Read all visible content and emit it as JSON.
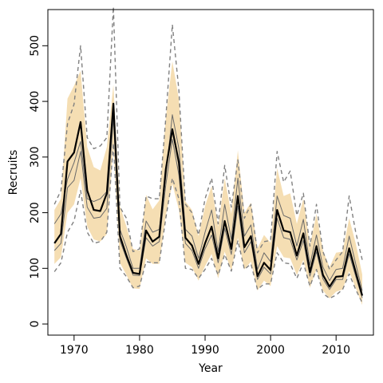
{
  "chart_data": {
    "type": "line",
    "xlabel": "Year",
    "ylabel": "Recruits",
    "xlim": [
      1966,
      2015.7
    ],
    "ylim": [
      -20,
      565
    ],
    "x_ticks": [
      1970,
      1980,
      1990,
      2000,
      2010
    ],
    "y_ticks": [
      0,
      100,
      200,
      300,
      400,
      500
    ],
    "grid": false,
    "legend": "none",
    "colors": {
      "band": "#f5deb3",
      "median": "#000000",
      "inner": "#696969",
      "dashed": "#808080"
    },
    "x": [
      1967,
      1968,
      1969,
      1970,
      1971,
      1972,
      1973,
      1974,
      1975,
      1976,
      1977,
      1978,
      1979,
      1980,
      1981,
      1982,
      1983,
      1984,
      1985,
      1986,
      1987,
      1988,
      1989,
      1990,
      1991,
      1992,
      1993,
      1994,
      1995,
      1996,
      1997,
      1998,
      1999,
      2000,
      2001,
      2002,
      2003,
      2004,
      2005,
      2006,
      2007,
      2008,
      2009,
      2010,
      2011,
      2012,
      2013,
      2014
    ],
    "series": [
      {
        "role": "median",
        "values": [
          145,
          162,
          292,
          308,
          363,
          240,
          205,
          203,
          235,
          396,
          158,
          123,
          92,
          90,
          168,
          148,
          157,
          278,
          350,
          290,
          155,
          141,
          108,
          145,
          175,
          118,
          185,
          135,
          230,
          138,
          158,
          86,
          110,
          97,
          205,
          168,
          165,
          123,
          163,
          93,
          140,
          88,
          67,
          85,
          86,
          136,
          93,
          51
        ]
      },
      {
        "role": "upper-band",
        "values": [
          205,
          225,
          405,
          428,
          455,
          318,
          282,
          276,
          318,
          430,
          212,
          175,
          135,
          132,
          232,
          206,
          222,
          370,
          472,
          404,
          220,
          205,
          158,
          212,
          248,
          175,
          262,
          198,
          312,
          200,
          218,
          136,
          160,
          146,
          280,
          230,
          235,
          180,
          225,
          140,
          198,
          132,
          102,
          128,
          130,
          190,
          145,
          89
        ]
      },
      {
        "role": "lower-band",
        "values": [
          108,
          120,
          200,
          215,
          262,
          175,
          152,
          148,
          162,
          318,
          110,
          88,
          64,
          63,
          118,
          108,
          108,
          195,
          252,
          205,
          110,
          102,
          78,
          104,
          126,
          82,
          130,
          95,
          155,
          98,
          112,
          60,
          78,
          68,
          140,
          120,
          118,
          88,
          115,
          65,
          98,
          60,
          46,
          58,
          62,
          95,
          65,
          34
        ]
      },
      {
        "role": "upper-inner",
        "values": [
          180,
          198,
          260,
          290,
          328,
          225,
          220,
          225,
          238,
          390,
          170,
          138,
          100,
          100,
          185,
          165,
          170,
          265,
          376,
          315,
          170,
          158,
          118,
          165,
          205,
          130,
          215,
          152,
          262,
          158,
          178,
          98,
          128,
          112,
          230,
          195,
          190,
          140,
          188,
          106,
          160,
          102,
          78,
          98,
          100,
          158,
          108,
          60
        ]
      },
      {
        "role": "lower-inner",
        "values": [
          132,
          145,
          245,
          258,
          310,
          210,
          190,
          192,
          208,
          370,
          150,
          118,
          88,
          87,
          155,
          140,
          148,
          250,
          332,
          268,
          145,
          132,
          100,
          135,
          160,
          110,
          172,
          125,
          212,
          128,
          148,
          80,
          102,
          90,
          190,
          155,
          152,
          115,
          150,
          86,
          130,
          81,
          62,
          80,
          80,
          126,
          86,
          47
        ]
      },
      {
        "role": "upper-dashed",
        "values": [
          215,
          240,
          360,
          395,
          500,
          335,
          315,
          320,
          335,
          570,
          210,
          190,
          130,
          135,
          230,
          225,
          225,
          370,
          538,
          420,
          215,
          200,
          160,
          225,
          262,
          180,
          285,
          210,
          295,
          190,
          215,
          128,
          148,
          150,
          310,
          255,
          275,
          195,
          235,
          140,
          215,
          130,
          98,
          115,
          130,
          230,
          165,
          115
        ]
      },
      {
        "role": "lower-dashed",
        "values": [
          94,
          110,
          165,
          185,
          240,
          165,
          145,
          148,
          165,
          325,
          100,
          85,
          65,
          68,
          112,
          110,
          110,
          190,
          262,
          225,
          100,
          98,
          82,
          98,
          118,
          88,
          125,
          95,
          150,
          98,
          108,
          62,
          72,
          72,
          128,
          110,
          108,
          82,
          110,
          68,
          98,
          55,
          46,
          52,
          62,
          90,
          62,
          38
        ]
      }
    ]
  }
}
